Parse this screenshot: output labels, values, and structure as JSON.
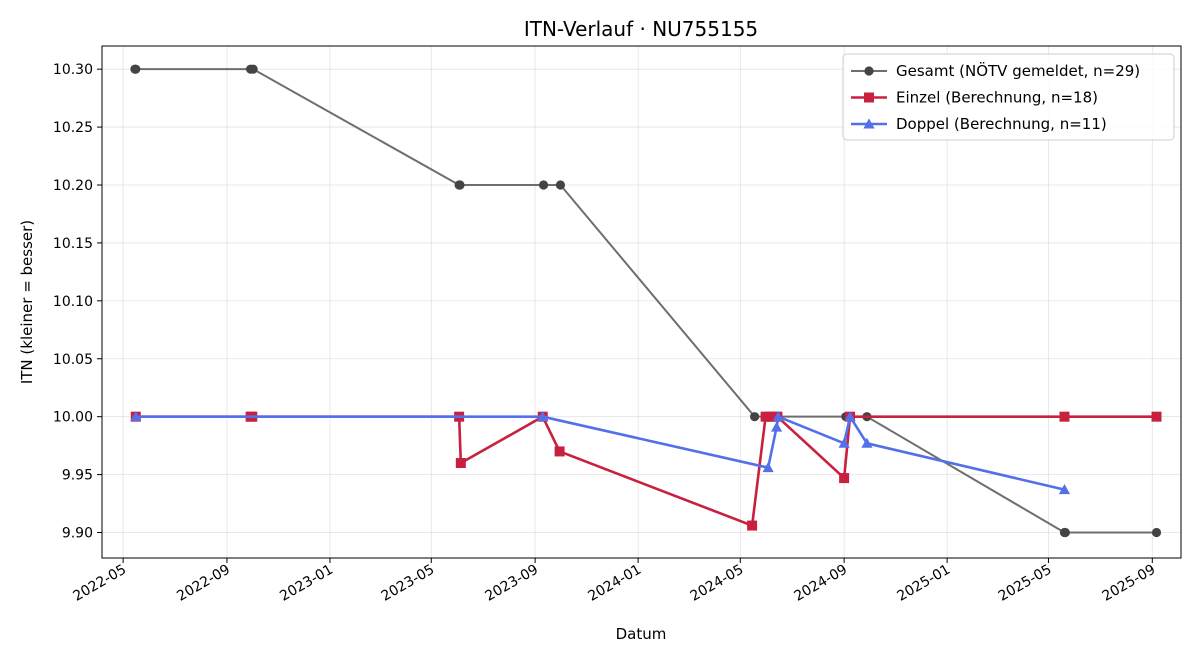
{
  "chart_data": {
    "type": "line",
    "title": "ITN-Verlauf · NU755155",
    "xlabel": "Datum",
    "ylabel": "ITN  (kleiner = besser)",
    "x_is_date": true,
    "xlim": [
      "2022-04-06",
      "2025-10-05"
    ],
    "ylim": [
      9.878,
      10.32
    ],
    "xticks": [
      "2022-05-01",
      "2022-09-01",
      "2023-01-01",
      "2023-05-01",
      "2023-09-01",
      "2024-01-01",
      "2024-05-01",
      "2024-09-01",
      "2025-01-01",
      "2025-05-01",
      "2025-09-01"
    ],
    "xtick_labels": [
      "2022-05",
      "2022-09",
      "2023-01",
      "2023-05",
      "2023-09",
      "2024-01",
      "2024-05",
      "2024-09",
      "2025-01",
      "2025-05",
      "2025-09"
    ],
    "yticks": [
      9.9,
      9.95,
      10.0,
      10.05,
      10.1,
      10.15,
      10.2,
      10.25,
      10.3
    ],
    "ytick_labels": [
      "9.90",
      "9.95",
      "10.00",
      "10.05",
      "10.10",
      "10.15",
      "10.20",
      "10.25",
      "10.30"
    ],
    "grid": true,
    "legend_position": "top-right",
    "series": [
      {
        "name": "Gesamt (NÖTV gemeldet, n=29)",
        "color": "#6e6e6e",
        "marker": "circle",
        "x": [
          "2022-05-15",
          "2022-05-16",
          "2022-09-29",
          "2022-10-02",
          "2023-06-03",
          "2023-06-04",
          "2023-09-11",
          "2023-10-01",
          "2024-05-18",
          "2024-09-03",
          "2024-09-04",
          "2024-09-08",
          "2024-09-28",
          "2025-05-20",
          "2025-05-21",
          "2025-09-06"
        ],
        "y": [
          10.3,
          10.3,
          10.3,
          10.3,
          10.2,
          10.2,
          10.2,
          10.2,
          10.0,
          10.0,
          10.0,
          10.0,
          10.0,
          9.9,
          9.9,
          9.9
        ]
      },
      {
        "name": "Einzel (Berechnung, n=18)",
        "color": "#c8203f",
        "marker": "square",
        "x": [
          "2022-05-16",
          "2022-09-29",
          "2022-10-01",
          "2023-06-03",
          "2023-06-05",
          "2023-09-10",
          "2023-09-30",
          "2024-05-15",
          "2024-05-31",
          "2024-06-05",
          "2024-06-09",
          "2024-06-14",
          "2024-09-01",
          "2024-09-08",
          "2025-05-20",
          "2025-09-06"
        ],
        "y": [
          10.0,
          10.0,
          10.0,
          10.0,
          9.96,
          10.0,
          9.97,
          9.906,
          10.0,
          10.0,
          10.0,
          10.0,
          9.947,
          10.0,
          10.0,
          10.0
        ]
      },
      {
        "name": "Doppel (Berechnung, n=11)",
        "color": "#5470e8",
        "marker": "triangle",
        "x": [
          "2022-05-16",
          "2023-09-10",
          "2024-06-03",
          "2024-06-13",
          "2024-06-15",
          "2024-09-01",
          "2024-09-08",
          "2024-09-28",
          "2025-05-20"
        ],
        "y": [
          10.0,
          10.0,
          9.956,
          9.991,
          10.0,
          9.977,
          10.0,
          9.977,
          9.937
        ]
      }
    ]
  }
}
